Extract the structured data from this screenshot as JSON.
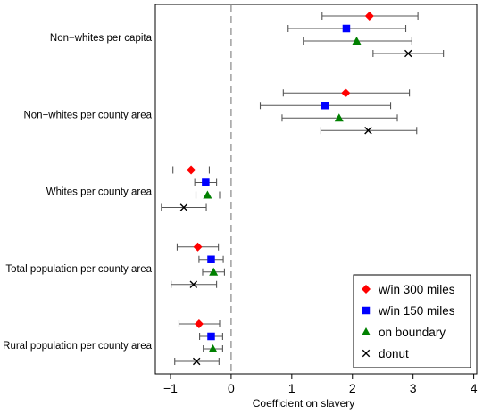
{
  "chart_data": {
    "type": "scatter",
    "subtype": "dot-whisker",
    "title": "",
    "xlabel": "Coefficient on slavery",
    "ylabel": "",
    "xlim": [
      -1.25,
      4.05
    ],
    "xticks": [
      -1,
      0,
      1,
      2,
      3,
      4
    ],
    "xtick_labels": [
      "−1",
      "0",
      "1",
      "2",
      "3",
      "4"
    ],
    "reference_line": 0,
    "grid": false,
    "legend_position": "bottom-right",
    "categories": [
      "Non−whites per capita",
      "Non−whites per county area",
      "Whites per county area",
      "Total population per county area",
      "Rural population per county area"
    ],
    "series": [
      {
        "name": "w/in 300 miles",
        "marker": "diamond",
        "color": "#ff0000",
        "points": [
          {
            "est": 2.28,
            "lo": 1.5,
            "hi": 3.08
          },
          {
            "est": 1.89,
            "lo": 0.86,
            "hi": 2.94
          },
          {
            "est": -0.66,
            "lo": -0.96,
            "hi": -0.36
          },
          {
            "est": -0.55,
            "lo": -0.89,
            "hi": -0.21
          },
          {
            "est": -0.53,
            "lo": -0.86,
            "hi": -0.19
          }
        ]
      },
      {
        "name": "w/in 150 miles",
        "marker": "square",
        "color": "#0000ff",
        "points": [
          {
            "est": 1.9,
            "lo": 0.94,
            "hi": 2.88
          },
          {
            "est": 1.55,
            "lo": 0.48,
            "hi": 2.63
          },
          {
            "est": -0.42,
            "lo": -0.6,
            "hi": -0.24
          },
          {
            "est": -0.33,
            "lo": -0.53,
            "hi": -0.13
          },
          {
            "est": -0.33,
            "lo": -0.52,
            "hi": -0.14
          }
        ]
      },
      {
        "name": "on boundary",
        "marker": "triangle",
        "color": "#008000",
        "points": [
          {
            "est": 2.07,
            "lo": 1.19,
            "hi": 2.98
          },
          {
            "est": 1.78,
            "lo": 0.84,
            "hi": 2.74
          },
          {
            "est": -0.39,
            "lo": -0.58,
            "hi": -0.19
          },
          {
            "est": -0.29,
            "lo": -0.47,
            "hi": -0.11
          },
          {
            "est": -0.3,
            "lo": -0.46,
            "hi": -0.14
          }
        ]
      },
      {
        "name": "donut",
        "marker": "x",
        "color": "#000000",
        "points": [
          {
            "est": 2.92,
            "lo": 2.34,
            "hi": 3.5
          },
          {
            "est": 2.26,
            "lo": 1.48,
            "hi": 3.06
          },
          {
            "est": -0.78,
            "lo": -1.15,
            "hi": -0.41
          },
          {
            "est": -0.62,
            "lo": -0.99,
            "hi": -0.24
          },
          {
            "est": -0.57,
            "lo": -0.93,
            "hi": -0.2
          }
        ]
      }
    ]
  }
}
